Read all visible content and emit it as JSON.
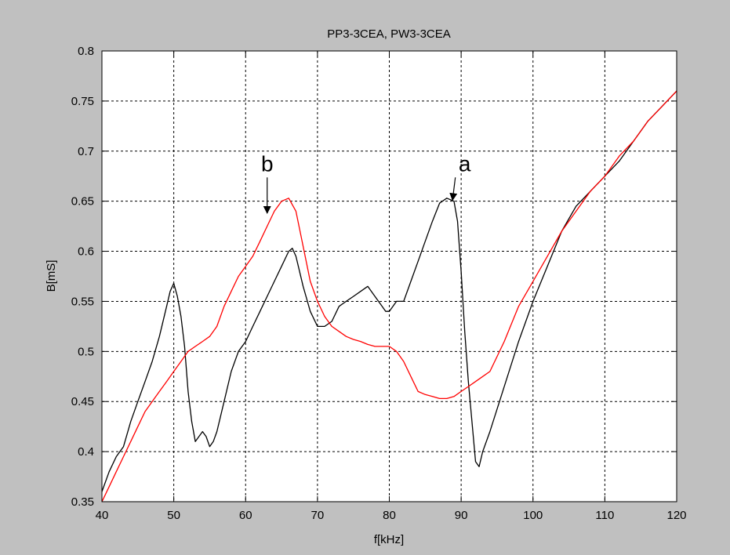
{
  "chart_data": {
    "type": "line",
    "title": "PP3-3CEA, PW3-3CEA",
    "xlabel": "f[kHz]",
    "ylabel": "B[mS]",
    "xlim": [
      40,
      120
    ],
    "ylim": [
      0.35,
      0.8
    ],
    "xticks": [
      40,
      50,
      60,
      70,
      80,
      90,
      100,
      110,
      120
    ],
    "yticks": [
      0.35,
      0.4,
      0.45,
      0.5,
      0.55,
      0.6,
      0.65,
      0.7,
      0.75,
      0.8
    ],
    "ytick_labels": [
      "0.35",
      "0.4",
      "0.45",
      "0.5",
      "0.55",
      "0.6",
      "0.65",
      "0.7",
      "0.75",
      "0.8"
    ],
    "grid": true,
    "background": "#ffffff",
    "series": [
      {
        "color": "#000000",
        "x": [
          40,
          41,
          42,
          43,
          44,
          45,
          46,
          47,
          48,
          49,
          49.5,
          50,
          50.5,
          51,
          51.5,
          52,
          52.5,
          53,
          53.5,
          54,
          54.5,
          55,
          55.5,
          56,
          57,
          58,
          59,
          60,
          61,
          62,
          63,
          64,
          65,
          66,
          66.5,
          67,
          68,
          69,
          70,
          71,
          72,
          73,
          74,
          75,
          76,
          77,
          78,
          79,
          79.5,
          80,
          81,
          82,
          83,
          84,
          85,
          86,
          87,
          88,
          89,
          89.5,
          90,
          90.5,
          91,
          91.5,
          92,
          92.5,
          93,
          94,
          96,
          98,
          100,
          102,
          104,
          106,
          108,
          110,
          112,
          114,
          116,
          118,
          120
        ],
        "y": [
          0.36,
          0.38,
          0.395,
          0.405,
          0.43,
          0.45,
          0.47,
          0.49,
          0.515,
          0.545,
          0.56,
          0.568,
          0.555,
          0.535,
          0.505,
          0.46,
          0.43,
          0.41,
          0.415,
          0.42,
          0.415,
          0.405,
          0.41,
          0.42,
          0.45,
          0.48,
          0.5,
          0.51,
          0.525,
          0.54,
          0.555,
          0.57,
          0.585,
          0.6,
          0.603,
          0.595,
          0.565,
          0.54,
          0.525,
          0.525,
          0.53,
          0.545,
          0.55,
          0.555,
          0.56,
          0.565,
          0.555,
          0.545,
          0.54,
          0.54,
          0.55,
          0.55,
          0.57,
          0.59,
          0.61,
          0.63,
          0.648,
          0.653,
          0.65,
          0.63,
          0.58,
          0.52,
          0.47,
          0.43,
          0.39,
          0.385,
          0.4,
          0.42,
          0.465,
          0.51,
          0.55,
          0.585,
          0.62,
          0.645,
          0.66,
          0.675,
          0.69,
          0.71,
          0.73,
          0.745,
          0.76
        ]
      },
      {
        "color": "#ff0000",
        "x": [
          40,
          41,
          42,
          43,
          44,
          45,
          46,
          47,
          48,
          49,
          50,
          51,
          52,
          53,
          54,
          55,
          56,
          57,
          58,
          59,
          60,
          61,
          62,
          63,
          64,
          65,
          66,
          67,
          68,
          69,
          70,
          71,
          72,
          73,
          74,
          75,
          76,
          77,
          78,
          79,
          80,
          81,
          82,
          83,
          84,
          85,
          86,
          87,
          88,
          89,
          90,
          91,
          92,
          93,
          94,
          96,
          98,
          100,
          102,
          104,
          106,
          108,
          110,
          112,
          114,
          116,
          118,
          120
        ],
        "y": [
          0.35,
          0.365,
          0.38,
          0.395,
          0.41,
          0.425,
          0.44,
          0.45,
          0.46,
          0.47,
          0.48,
          0.49,
          0.5,
          0.505,
          0.51,
          0.515,
          0.525,
          0.545,
          0.56,
          0.575,
          0.585,
          0.595,
          0.61,
          0.625,
          0.64,
          0.65,
          0.653,
          0.64,
          0.605,
          0.57,
          0.55,
          0.535,
          0.525,
          0.52,
          0.515,
          0.512,
          0.51,
          0.507,
          0.505,
          0.505,
          0.505,
          0.5,
          0.49,
          0.475,
          0.46,
          0.457,
          0.455,
          0.453,
          0.453,
          0.455,
          0.46,
          0.465,
          0.47,
          0.475,
          0.48,
          0.51,
          0.545,
          0.57,
          0.595,
          0.62,
          0.64,
          0.66,
          0.675,
          0.695,
          0.71,
          0.73,
          0.745,
          0.76
        ]
      }
    ],
    "annotations": [
      {
        "text": "a",
        "x": 90.5,
        "y": 0.68,
        "arrow_to": [
          88.8,
          0.651
        ]
      },
      {
        "text": "b",
        "x": 63,
        "y": 0.68,
        "arrow_to": [
          63,
          0.638
        ]
      }
    ]
  }
}
